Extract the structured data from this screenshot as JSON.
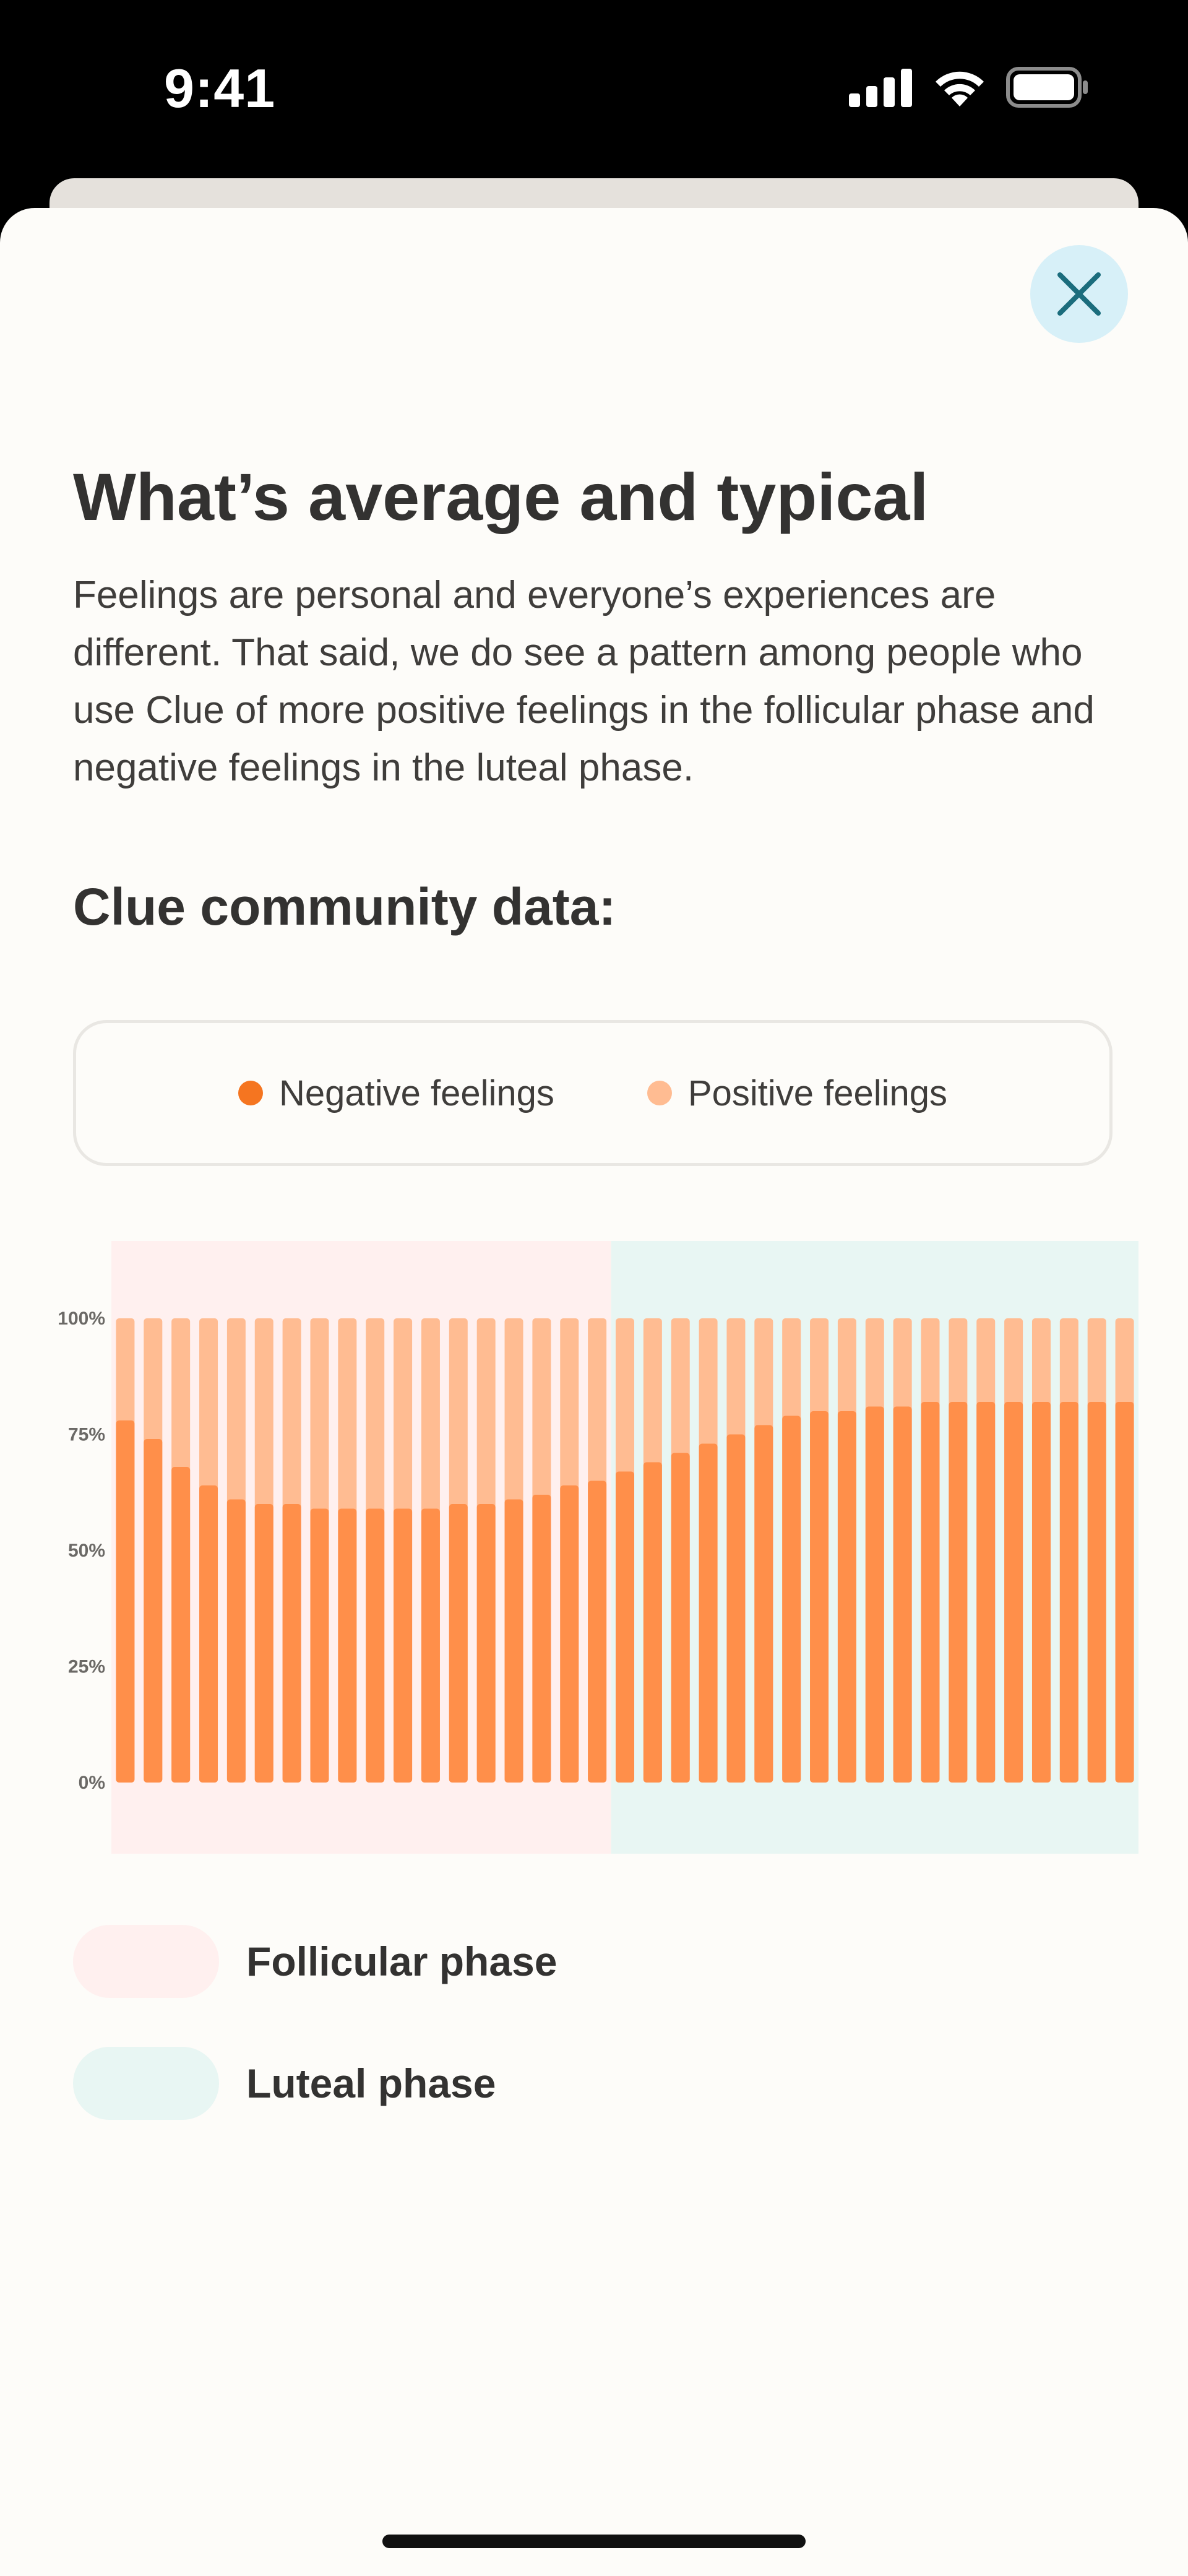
{
  "status_bar": {
    "time": "9:41",
    "icons": [
      "cellular-signal-icon",
      "wifi-icon",
      "battery-icon"
    ]
  },
  "header": {
    "close_icon": "close-icon"
  },
  "content": {
    "title": "What’s average and typical",
    "body": "Feelings are personal and everyone’s experiences are different. That said, we do see a pattern among people who use Clue of more positive feelings in the follicular phase and negative feelings in the luteal phase.",
    "subtitle": "Clue community data:"
  },
  "legend": {
    "negative": "Negative feelings",
    "positive": "Positive feelings"
  },
  "colors": {
    "negative": "#ff8f4a",
    "negative_dot": "#f57520",
    "positive": "#ffbc92",
    "follicular": "#fff0ef",
    "luteal": "#e8f6f3",
    "accent": "#1b6d7d"
  },
  "phases": {
    "follicular_label": "Follicular phase",
    "luteal_label": "Luteal phase"
  },
  "chart_data": {
    "type": "bar",
    "stacked": true,
    "yticks": [
      "0%",
      "25%",
      "50%",
      "75%",
      "100%"
    ],
    "ylim": [
      0,
      100
    ],
    "series": [
      {
        "name": "Negative feelings",
        "values": [
          78,
          74,
          68,
          64,
          61,
          60,
          60,
          59,
          59,
          59,
          59,
          59,
          60,
          60,
          61,
          62,
          64,
          65,
          67,
          69,
          71,
          73,
          75,
          77,
          79,
          80,
          80,
          81,
          81,
          82,
          82,
          82,
          82,
          82,
          82,
          82,
          82
        ]
      },
      {
        "name": "Positive feelings",
        "values": [
          22,
          26,
          32,
          36,
          39,
          40,
          40,
          41,
          41,
          41,
          41,
          41,
          40,
          40,
          39,
          38,
          36,
          35,
          33,
          31,
          29,
          27,
          25,
          23,
          21,
          20,
          20,
          19,
          19,
          18,
          18,
          18,
          18,
          18,
          18,
          18,
          18
        ]
      }
    ],
    "follicular_days": 18,
    "luteal_days": 19
  }
}
